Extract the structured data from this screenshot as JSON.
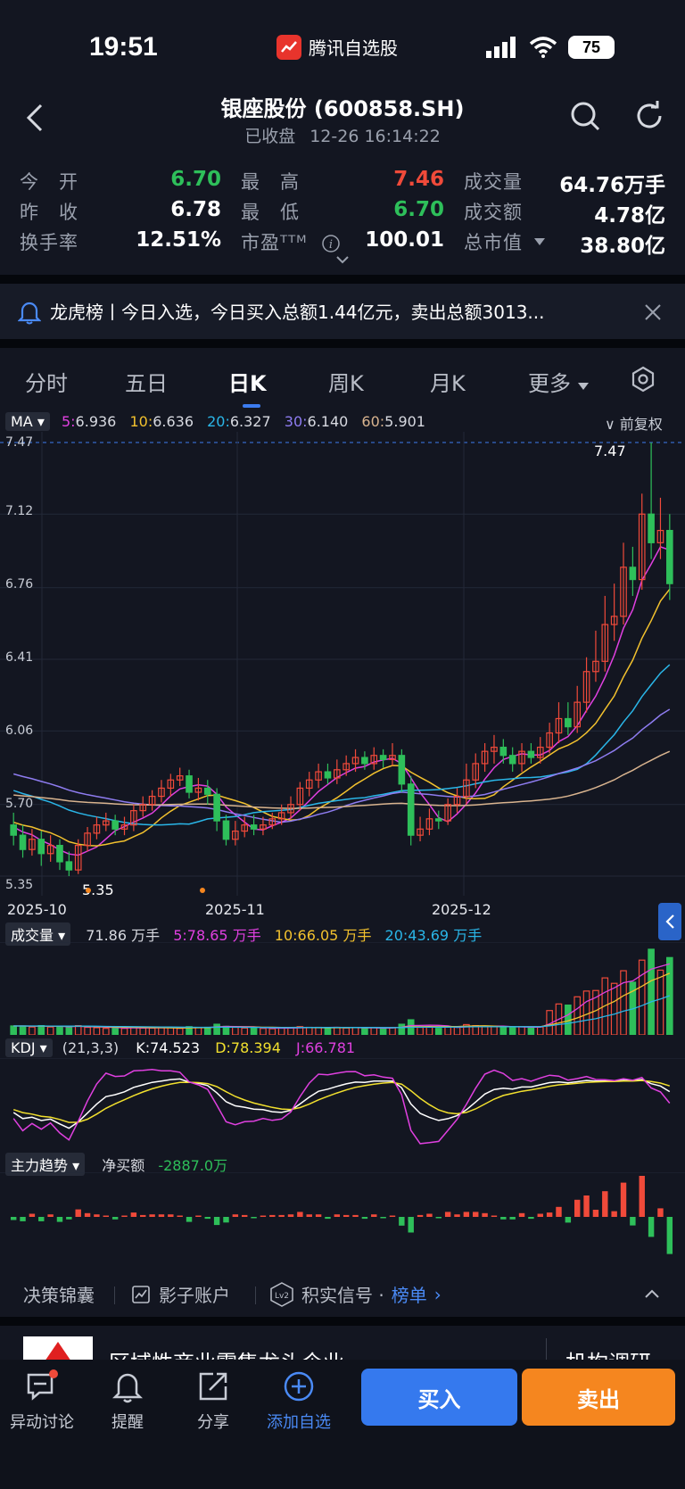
{
  "status_bar": {
    "time": "19:51",
    "app_name": "腾讯自选股",
    "battery": "75"
  },
  "header": {
    "title": "银座股份 (600858.SH)",
    "market_status": "已收盘",
    "datetime": "12-26 16:14:22"
  },
  "quote": {
    "open_label": "今　开",
    "open": "6.70",
    "prev_close_label": "昨　收",
    "prev_close": "6.78",
    "turnover_label": "换手率",
    "turnover": "12.51%",
    "high_label": "最　高",
    "high": "7.46",
    "low_label": "最　低",
    "low": "6.70",
    "pe_label": "市盈ᵀᵀᴹ",
    "pe": "100.01",
    "volume_label": "成交量",
    "volume": "64.76万手",
    "amount_label": "成交额",
    "amount": "4.78亿",
    "mktcap_label": "总市值",
    "mktcap": "38.80亿"
  },
  "notice": {
    "text": "龙虎榜丨今日入选，今日买入总额1.44亿元，卖出总额3013..."
  },
  "tabs": [
    "分时",
    "五日",
    "日K",
    "周K",
    "月K",
    "更多"
  ],
  "ma_legend": {
    "label": "MA",
    "items": [
      {
        "name": "5:",
        "value": "6.936",
        "color": "#e040e0"
      },
      {
        "name": "10:",
        "value": "6.636",
        "color": "#f2c12e"
      },
      {
        "name": "20:",
        "value": "6.327",
        "color": "#2ab6e8"
      },
      {
        "name": "30:",
        "value": "6.140",
        "color": "#8e7cf0"
      },
      {
        "name": "60:",
        "value": "5.901",
        "color": "#d9b48f"
      }
    ],
    "adjust": "前复权"
  },
  "kline": {
    "y_ticks": [
      "7.47",
      "7.12",
      "6.76",
      "6.41",
      "6.06",
      "5.70",
      "5.35"
    ],
    "x_ticks": [
      "2025-10",
      "2025-11",
      "2025-12"
    ],
    "max_label": "7.47",
    "min_label": "5.35"
  },
  "volume_legend": {
    "label": "成交量",
    "value": "71.86 万手",
    "ma5": "5:78.65 万手",
    "ma10": "10:66.05 万手",
    "ma20": "20:43.69 万手"
  },
  "kdj_legend": {
    "label": "KDJ",
    "params": "(21,3,3)",
    "k": "K:74.523",
    "d": "D:78.394",
    "j": "J:66.781"
  },
  "main_force_legend": {
    "label": "主力趋势",
    "net_label": "净买额",
    "net_value": "-2887.0万"
  },
  "tools": [
    "决策锦囊",
    "影子账户",
    "积实信号 ·",
    "榜单"
  ],
  "promo": {
    "text": "区域性商业零售龙头企业",
    "right": "机构调研"
  },
  "bottom_bar": {
    "items": [
      "异动讨论",
      "提醒",
      "分享",
      "添加自选"
    ],
    "buy": "买入",
    "sell": "卖出"
  },
  "colors": {
    "up": "#f04a3a",
    "down": "#2ebf5a",
    "accent": "#3c7cf0",
    "sell": "#f5861f"
  },
  "chart_data": {
    "type": "candlestick",
    "ylim": [
      5.35,
      7.47
    ],
    "candles": [
      [
        5.6,
        5.55,
        5.66,
        5.5
      ],
      [
        5.55,
        5.48,
        5.6,
        5.44
      ],
      [
        5.48,
        5.53,
        5.58,
        5.45
      ],
      [
        5.53,
        5.46,
        5.57,
        5.4
      ],
      [
        5.46,
        5.5,
        5.55,
        5.42
      ],
      [
        5.5,
        5.42,
        5.53,
        5.38
      ],
      [
        5.42,
        5.38,
        5.47,
        5.35
      ],
      [
        5.38,
        5.5,
        5.53,
        5.36
      ],
      [
        5.5,
        5.56,
        5.59,
        5.47
      ],
      [
        5.56,
        5.6,
        5.64,
        5.53
      ],
      [
        5.6,
        5.62,
        5.66,
        5.57
      ],
      [
        5.62,
        5.58,
        5.65,
        5.55
      ],
      [
        5.58,
        5.6,
        5.64,
        5.55
      ],
      [
        5.6,
        5.67,
        5.7,
        5.57
      ],
      [
        5.67,
        5.7,
        5.74,
        5.64
      ],
      [
        5.7,
        5.74,
        5.77,
        5.67
      ],
      [
        5.74,
        5.78,
        5.82,
        5.71
      ],
      [
        5.78,
        5.82,
        5.85,
        5.74
      ],
      [
        5.82,
        5.84,
        5.88,
        5.79
      ],
      [
        5.84,
        5.76,
        5.87,
        5.73
      ],
      [
        5.76,
        5.78,
        5.83,
        5.72
      ],
      [
        5.78,
        5.75,
        5.82,
        5.7
      ],
      [
        5.75,
        5.62,
        5.78,
        5.57
      ],
      [
        5.62,
        5.53,
        5.65,
        5.5
      ],
      [
        5.53,
        5.57,
        5.62,
        5.5
      ],
      [
        5.57,
        5.6,
        5.64,
        5.54
      ],
      [
        5.6,
        5.58,
        5.65,
        5.55
      ],
      [
        5.58,
        5.6,
        5.64,
        5.55
      ],
      [
        5.6,
        5.63,
        5.66,
        5.58
      ],
      [
        5.63,
        5.66,
        5.7,
        5.6
      ],
      [
        5.66,
        5.7,
        5.74,
        5.63
      ],
      [
        5.7,
        5.78,
        5.81,
        5.67
      ],
      [
        5.78,
        5.82,
        5.86,
        5.74
      ],
      [
        5.82,
        5.86,
        5.9,
        5.78
      ],
      [
        5.86,
        5.83,
        5.9,
        5.8
      ],
      [
        5.83,
        5.87,
        5.92,
        5.8
      ],
      [
        5.87,
        5.9,
        5.94,
        5.84
      ],
      [
        5.9,
        5.93,
        5.97,
        5.86
      ],
      [
        5.93,
        5.9,
        5.96,
        5.87
      ],
      [
        5.9,
        5.94,
        5.98,
        5.87
      ],
      [
        5.94,
        5.92,
        5.97,
        5.88
      ],
      [
        5.92,
        5.94,
        6.0,
        5.89
      ],
      [
        5.94,
        5.8,
        5.97,
        5.76
      ],
      [
        5.8,
        5.55,
        5.84,
        5.5
      ],
      [
        5.55,
        5.58,
        5.64,
        5.52
      ],
      [
        5.58,
        5.63,
        5.68,
        5.55
      ],
      [
        5.63,
        5.62,
        5.67,
        5.58
      ],
      [
        5.62,
        5.7,
        5.73,
        5.6
      ],
      [
        5.7,
        5.74,
        5.78,
        5.66
      ],
      [
        5.74,
        5.82,
        5.9,
        5.7
      ],
      [
        5.82,
        5.9,
        5.95,
        5.78
      ],
      [
        5.9,
        5.96,
        6.0,
        5.86
      ],
      [
        5.96,
        5.98,
        6.04,
        5.9
      ],
      [
        5.98,
        5.94,
        6.02,
        5.9
      ],
      [
        5.94,
        5.9,
        5.98,
        5.86
      ],
      [
        5.9,
        5.96,
        6.0,
        5.86
      ],
      [
        5.96,
        5.93,
        6.0,
        5.9
      ],
      [
        5.93,
        5.98,
        6.03,
        5.9
      ],
      [
        5.98,
        6.05,
        6.1,
        5.95
      ],
      [
        6.05,
        6.12,
        6.2,
        6.0
      ],
      [
        6.12,
        6.08,
        6.2,
        6.04
      ],
      [
        6.08,
        6.2,
        6.28,
        6.05
      ],
      [
        6.2,
        6.35,
        6.42,
        6.15
      ],
      [
        6.35,
        6.4,
        6.55,
        6.3
      ],
      [
        6.4,
        6.58,
        6.72,
        6.35
      ],
      [
        6.58,
        6.62,
        6.78,
        6.5
      ],
      [
        6.62,
        6.86,
        6.98,
        6.58
      ],
      [
        6.86,
        6.8,
        6.96,
        6.72
      ],
      [
        6.8,
        7.12,
        7.22,
        6.75
      ],
      [
        7.12,
        6.98,
        7.47,
        6.9
      ],
      [
        6.98,
        7.04,
        7.2,
        6.9
      ],
      [
        7.04,
        6.78,
        7.12,
        6.7
      ]
    ]
  }
}
